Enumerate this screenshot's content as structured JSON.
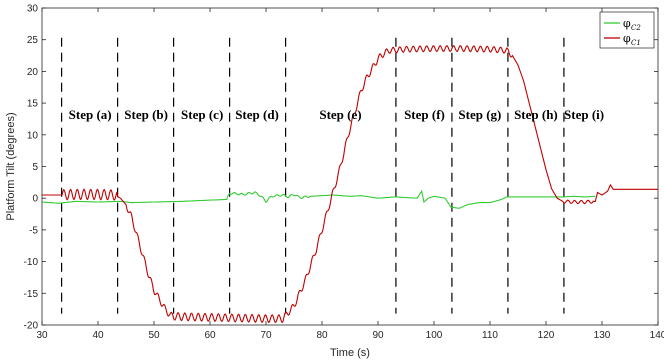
{
  "chart_data": {
    "type": "line",
    "xlabel": "Time (s)",
    "ylabel": "Platform Tilt (degrees)",
    "xlim": [
      30,
      140
    ],
    "ylim": [
      -20,
      30
    ],
    "xticks": [
      30,
      40,
      50,
      60,
      70,
      80,
      90,
      100,
      110,
      120,
      130,
      140
    ],
    "yticks": [
      -20,
      -15,
      -10,
      -5,
      0,
      5,
      10,
      15,
      20,
      25,
      30
    ],
    "grid": false,
    "legend_position": "top-right",
    "step_boundaries": [
      33.5,
      43.5,
      53.5,
      63.5,
      73.5,
      93.2,
      103.2,
      113.2,
      123.2
    ],
    "step_labels": [
      {
        "text": "Step (a)",
        "x": 38.6,
        "y": 12.5
      },
      {
        "text": "Step (b)",
        "x": 48.6,
        "y": 12.5
      },
      {
        "text": "Step (c)",
        "x": 58.6,
        "y": 12.5
      },
      {
        "text": "Step (d)",
        "x": 68.4,
        "y": 12.5
      },
      {
        "text": "Step (e)",
        "x": 83.3,
        "y": 12.5
      },
      {
        "text": "Step (f)",
        "x": 98.3,
        "y": 12.5
      },
      {
        "text": "Step (g)",
        "x": 108.2,
        "y": 12.5
      },
      {
        "text": "Step (h)",
        "x": 118.2,
        "y": 12.5
      },
      {
        "text": "Step (i)",
        "x": 126.8,
        "y": 12.5
      }
    ],
    "series": [
      {
        "name": "φ",
        "subscript": "C2",
        "color": "#33cc33",
        "points": [
          [
            30,
            -0.6
          ],
          [
            33,
            -0.8
          ],
          [
            36,
            -0.5
          ],
          [
            40,
            -0.6
          ],
          [
            44,
            -0.5
          ],
          [
            46,
            -0.7
          ],
          [
            50,
            -0.6
          ],
          [
            55,
            -0.5
          ],
          [
            60,
            -0.3
          ],
          [
            63,
            -0.2
          ],
          [
            63.5,
            0.8
          ],
          [
            66,
            0.6
          ],
          [
            68,
            0.9
          ],
          [
            69,
            0.4
          ],
          [
            70,
            -0.5
          ],
          [
            71,
            0.3
          ],
          [
            73,
            0.5
          ],
          [
            74,
            0.2
          ],
          [
            75,
            0.6
          ],
          [
            76,
            0.1
          ],
          [
            78,
            0.3
          ],
          [
            82,
            0.5
          ],
          [
            85,
            0.3
          ],
          [
            87,
            0.4
          ],
          [
            90,
            0.0
          ],
          [
            93,
            0.2
          ],
          [
            95,
            0.1
          ],
          [
            97,
            0.0
          ],
          [
            97.8,
            1.1
          ],
          [
            98.2,
            -0.6
          ],
          [
            99,
            0.0
          ],
          [
            100,
            0.3
          ],
          [
            102,
            0.0
          ],
          [
            103,
            -1.4
          ],
          [
            104.5,
            -1.6
          ],
          [
            106,
            -1.0
          ],
          [
            108,
            -0.7
          ],
          [
            110,
            -0.7
          ],
          [
            112,
            -0.2
          ],
          [
            113,
            0.2
          ],
          [
            116,
            0.2
          ],
          [
            120,
            0.2
          ],
          [
            123,
            0.2
          ],
          [
            125,
            0.3
          ],
          [
            127,
            0.2
          ],
          [
            128.8,
            0.3
          ]
        ]
      },
      {
        "name": "φ",
        "subscript": "C1",
        "color": "#c00000",
        "points": [
          [
            30,
            0.5
          ],
          [
            33.5,
            0.5
          ],
          [
            35,
            0.6
          ],
          [
            40,
            0.6
          ],
          [
            43,
            0.5
          ],
          [
            44,
            0
          ],
          [
            45,
            -1
          ],
          [
            46,
            -3
          ],
          [
            47,
            -6
          ],
          [
            48,
            -9
          ],
          [
            49,
            -12
          ],
          [
            50,
            -14.5
          ],
          [
            51,
            -16
          ],
          [
            52,
            -17.5
          ],
          [
            53,
            -18.6
          ],
          [
            55,
            -18.7
          ],
          [
            60,
            -18.8
          ],
          [
            65,
            -18.9
          ],
          [
            70,
            -19
          ],
          [
            73,
            -19
          ],
          [
            74,
            -18
          ],
          [
            75,
            -17
          ],
          [
            76,
            -15
          ],
          [
            77,
            -13
          ],
          [
            78,
            -10.5
          ],
          [
            79,
            -8
          ],
          [
            80,
            -5
          ],
          [
            81,
            -2
          ],
          [
            82,
            1
          ],
          [
            83,
            4
          ],
          [
            84,
            7.5
          ],
          [
            85,
            11
          ],
          [
            86,
            14
          ],
          [
            87,
            17
          ],
          [
            88,
            19
          ],
          [
            89,
            20.5
          ],
          [
            90,
            22
          ],
          [
            91,
            22.8
          ],
          [
            92,
            23.3
          ],
          [
            95,
            23.5
          ],
          [
            100,
            23.6
          ],
          [
            105,
            23.6
          ],
          [
            110,
            23.5
          ],
          [
            113,
            23.3
          ],
          [
            114,
            22.5
          ],
          [
            115,
            21
          ],
          [
            116,
            18.5
          ],
          [
            117,
            15
          ],
          [
            118,
            11.5
          ],
          [
            119,
            8
          ],
          [
            120,
            4.5
          ],
          [
            121,
            1.5
          ],
          [
            122,
            0
          ],
          [
            123,
            -0.5
          ],
          [
            125,
            -0.6
          ],
          [
            127,
            -0.6
          ],
          [
            128.8,
            -0.5
          ],
          [
            129.2,
            0.9
          ],
          [
            130,
            0.5
          ],
          [
            131,
            1.1
          ],
          [
            131.5,
            2.1
          ],
          [
            132,
            1.4
          ],
          [
            133,
            1.4
          ],
          [
            136,
            1.4
          ],
          [
            140,
            1.4
          ]
        ]
      }
    ]
  }
}
